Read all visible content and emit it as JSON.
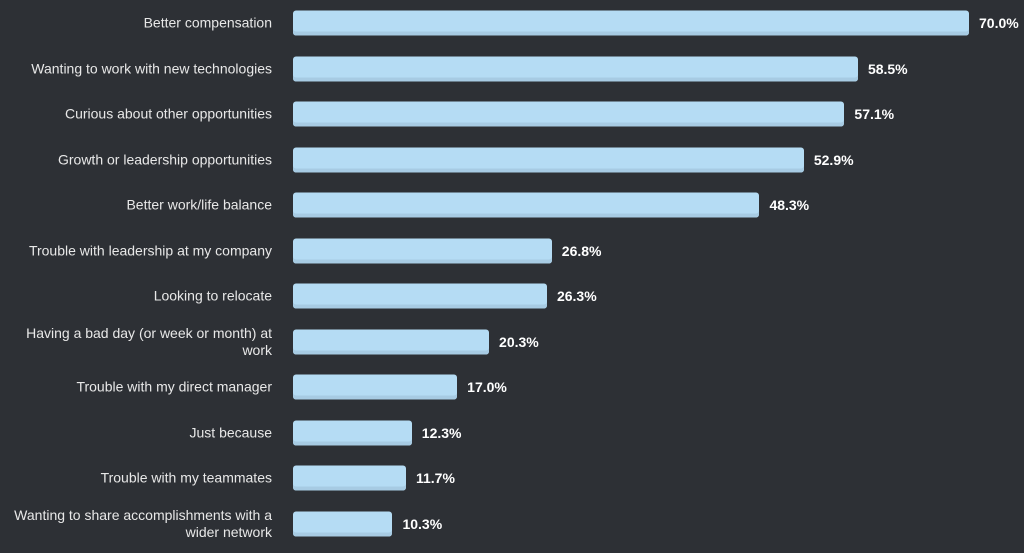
{
  "chart_data": {
    "type": "bar",
    "orientation": "horizontal",
    "title": "",
    "xlabel": "",
    "ylabel": "",
    "xlim": [
      0,
      70
    ],
    "grid": false,
    "categories": [
      "Better compensation",
      "Wanting to work with new technologies",
      "Curious about other opportunities",
      "Growth or leadership opportunities",
      "Better work/life balance",
      "Trouble with leadership at my company",
      "Looking to relocate",
      "Having a bad day (or week or month) at work",
      "Trouble with my direct manager",
      "Just because",
      "Trouble with my teammates",
      "Wanting to share accomplishments with a wider network"
    ],
    "values": [
      70.0,
      58.5,
      57.1,
      52.9,
      48.3,
      26.8,
      26.3,
      20.3,
      17.0,
      12.3,
      11.7,
      10.3
    ],
    "value_labels": [
      "70.0%",
      "58.5%",
      "57.1%",
      "52.9%",
      "48.3%",
      "26.8%",
      "26.3%",
      "20.3%",
      "17.0%",
      "12.3%",
      "11.7%",
      "10.3%"
    ],
    "colors": {
      "bar": "#b5dcf4",
      "background": "#2d3035",
      "text": "#e8e8e8"
    }
  }
}
